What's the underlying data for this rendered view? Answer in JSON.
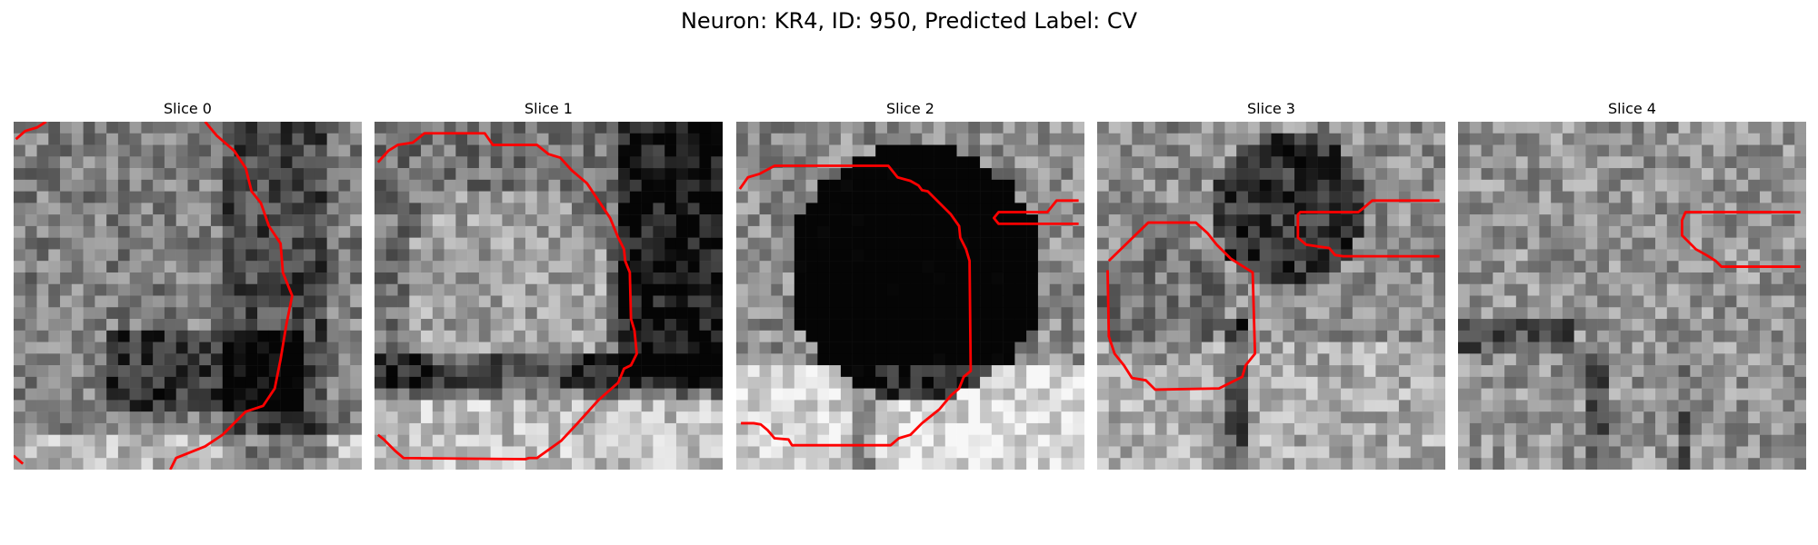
{
  "figure": {
    "title": "Neuron: KR4, ID: 950, Predicted Label: CV"
  },
  "panels": [
    {
      "title": "Slice 0",
      "seed": 11,
      "base": 0.5
    },
    {
      "title": "Slice 1",
      "seed": 23,
      "base": 0.45
    },
    {
      "title": "Slice 2",
      "seed": 37,
      "base": 0.4
    },
    {
      "title": "Slice 3",
      "seed": 41,
      "base": 0.55
    },
    {
      "title": "Slice 4",
      "seed": 59,
      "base": 0.58
    }
  ],
  "colors": {
    "contour": "#ff0000"
  }
}
